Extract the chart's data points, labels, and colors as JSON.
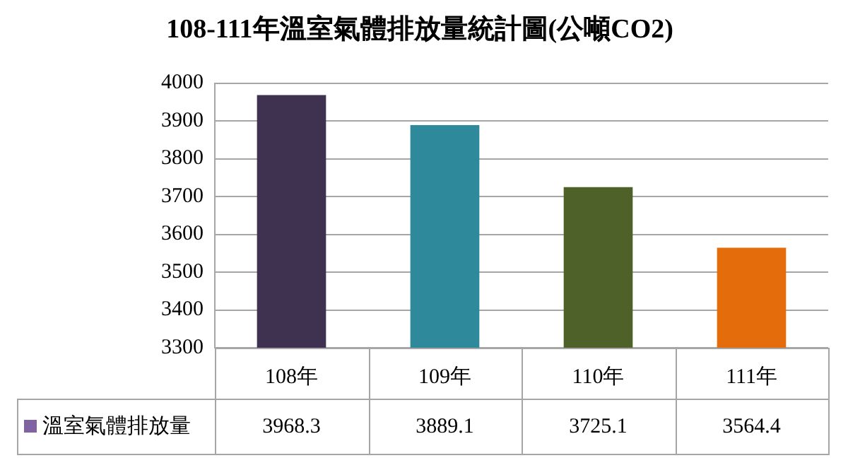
{
  "chart_data": {
    "type": "bar",
    "title": "108-111年溫室氣體排放量統計圖(公噸CO2)",
    "categories": [
      "108年",
      "109年",
      "110年",
      "111年"
    ],
    "series": [
      {
        "name": "溫室氣體排放量",
        "color": "#8064a2",
        "colors": [
          "#3f3150",
          "#2e8a9b",
          "#4e6128",
          "#e46c0a"
        ],
        "values": [
          3968.3,
          3889.1,
          3725.1,
          3564.4
        ]
      }
    ],
    "ylim": [
      3300,
      4000
    ],
    "yticks": [
      3300,
      3400,
      3500,
      3600,
      3700,
      3800,
      3900,
      4000
    ],
    "grid": "y",
    "data_labels": true,
    "legend": "bottom left"
  }
}
